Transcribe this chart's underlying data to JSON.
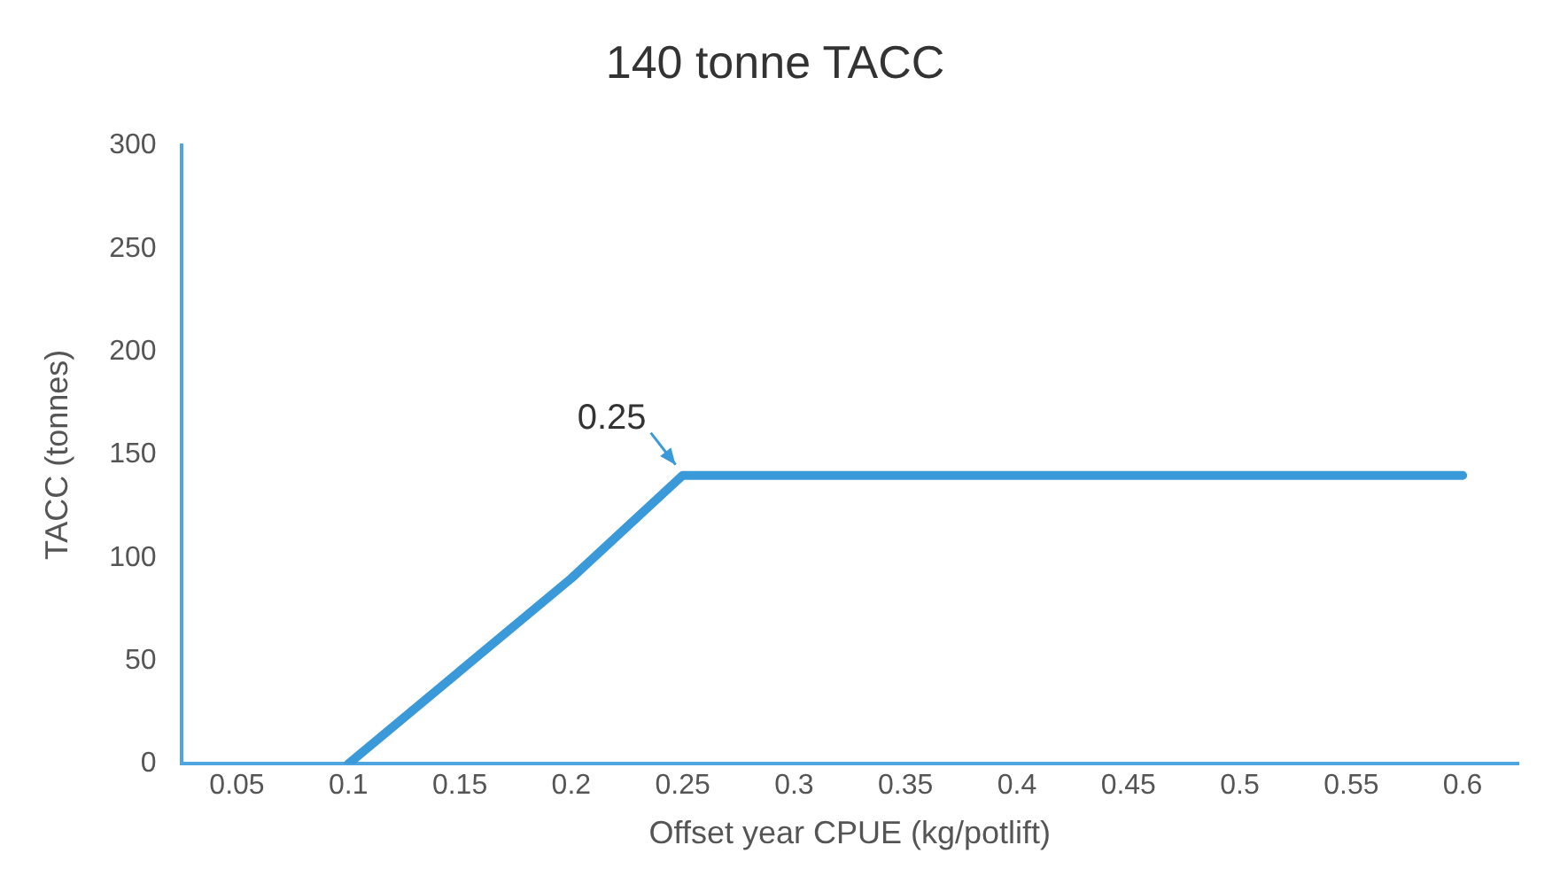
{
  "chart_data": {
    "type": "line",
    "title": "140 tonne TACC",
    "xlabel": "Offset year CPUE (kg/potlift)",
    "ylabel": "TACC (tonnes)",
    "x": [
      0.1,
      0.15,
      0.2,
      0.25,
      0.3,
      0.35,
      0.4,
      0.45,
      0.5,
      0.55,
      0.6
    ],
    "series": [
      {
        "color": "#3a9ad9",
        "values": [
          0,
          45,
          90,
          140,
          140,
          140,
          140,
          140,
          140,
          140,
          140
        ]
      }
    ],
    "xlim": [
      0.025,
      0.625
    ],
    "xticks": [
      0.05,
      0.1,
      0.15,
      0.2,
      0.25,
      0.3,
      0.35,
      0.4,
      0.45,
      0.5,
      0.55,
      0.6
    ],
    "ylim": [
      0,
      300
    ],
    "yticks": [
      0,
      50,
      100,
      150,
      200,
      250,
      300
    ],
    "grid": false,
    "legend": false,
    "marker": "none",
    "line_style": "solid",
    "annotations": [
      {
        "text": "0.25",
        "x": 0.25,
        "y": 140
      }
    ]
  }
}
